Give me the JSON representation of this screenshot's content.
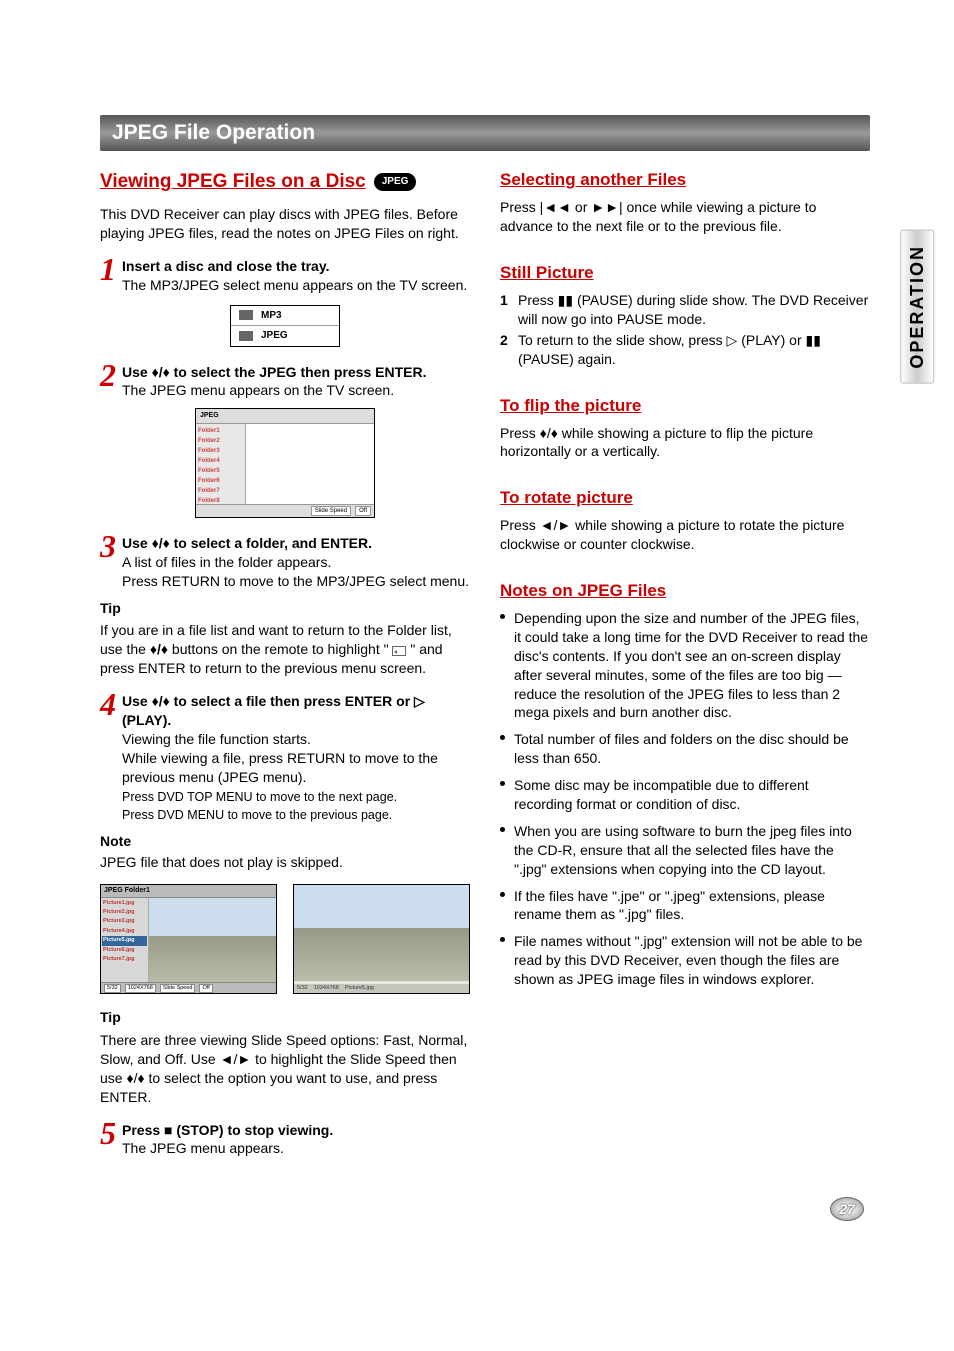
{
  "colors": {
    "accent": "#cc0000",
    "text": "#000000",
    "bar_gradient": [
      "#555555",
      "#999999",
      "#555555"
    ]
  },
  "section_title": "JPEG File Operation",
  "side_tab": "OPERATION",
  "page_number": "27",
  "left": {
    "heading": "Viewing JPEG Files on a Disc",
    "badge": "JPEG",
    "intro": "This DVD Receiver can play discs with JPEG files. Before playing JPEG files, read the notes on JPEG Files on right.",
    "step1": {
      "bold": "Insert a disc and close the tray.",
      "text": "The MP3/JPEG select menu appears on the TV screen."
    },
    "menu_box": {
      "row1": "MP3",
      "row2": "JPEG"
    },
    "step2": {
      "bold": "Use ♦/♦ to select the JPEG then press ENTER.",
      "text": "The JPEG menu appears on the TV screen."
    },
    "jpeg_screen1": {
      "title": "JPEG",
      "folders": [
        "Folder1",
        "Folder2",
        "Folder3",
        "Folder4",
        "Folder5",
        "Folder6",
        "Folder7",
        "Folder8"
      ],
      "footer_label": "Slide Speed",
      "footer_value": "Off"
    },
    "step3": {
      "bold": "Use ♦/♦ to select a folder, and ENTER.",
      "text1": "A list of files in the folder appears.",
      "text2": "Press RETURN to move to the MP3/JPEG select menu."
    },
    "tip1_label": "Tip",
    "tip1_text": "If you are in a file list and want to return to the Folder list, use the ♦/♦ buttons on the remote to highlight \" \" and press ENTER to return to the previous menu screen.",
    "step4": {
      "bold": "Use ♦/♦ to select a file then press ENTER or ▷ (PLAY).",
      "text1": "Viewing the file function starts.",
      "text2": "While viewing a file, press RETURN to move to the previous menu (JPEG menu).",
      "text3": "Press DVD TOP MENU to move to the next page.",
      "text4": "Press DVD MENU to move to the previous page."
    },
    "note_label": "Note",
    "note_text": "JPEG file that does not play is skipped.",
    "shot_left": {
      "title": "JPEG    Folder1",
      "files": [
        "Picture1.jpg",
        "Picture2.jpg",
        "Picture3.jpg",
        "Picture4.jpg",
        "Picture5.jpg",
        "Picture6.jpg",
        "Picture7.jpg"
      ],
      "selected_index": 4,
      "footer_count": "5/32",
      "footer_res": "1024X768",
      "footer_label": "Slide Speed",
      "footer_value": "Off"
    },
    "shot_right": {
      "footer_count": "5/32",
      "footer_res": "1024X768",
      "footer_file": "Picture5.jpg"
    },
    "tip2_label": "Tip",
    "tip2_text": "There are three viewing Slide Speed options: Fast, Normal, Slow, and Off. Use ◄/► to highlight the Slide Speed then use ♦/♦ to select the option you want to use, and press ENTER.",
    "step5": {
      "bold": "Press ■ (STOP) to stop viewing.",
      "text": "The JPEG menu appears."
    }
  },
  "right": {
    "sec1_h": "Selecting another Files",
    "sec1_t": "Press |◄◄ or ►►| once while viewing a picture to advance to the next file or to the previous file.",
    "sec2_h": "Still Picture",
    "sec2_items": [
      {
        "n": "1",
        "t": "Press ▮▮ (PAUSE) during slide show. The DVD Receiver will now go into PAUSE mode."
      },
      {
        "n": "2",
        "t": "To return to the slide show, press ▷ (PLAY) or ▮▮ (PAUSE) again."
      }
    ],
    "sec3_h": "To flip the picture",
    "sec3_t": "Press ♦/♦ while showing a picture to flip the picture horizontally or a vertically.",
    "sec4_h": "To rotate picture",
    "sec4_t": "Press ◄/► while showing a picture to rotate the picture clockwise or counter clockwise.",
    "sec5_h": "Notes on JPEG Files",
    "sec5_bullets": [
      "Depending upon the size and number of the JPEG files, it could take a long time for the DVD Receiver to read the disc's contents. If you don't see an on-screen display after several minutes, some of the files are too big — reduce the resolution of the JPEG files to less than 2 mega pixels and burn another disc.",
      "Total number of files and folders on the disc should be less than 650.",
      "Some disc may be incompatible due to different recording format or condition of disc.",
      "When you are using software to burn the jpeg files into the CD-R, ensure that all the selected files have the \".jpg\" extensions when copying into the CD layout.",
      "If the files have \".jpe\" or \".jpeg\" extensions, please rename them as \".jpg\" files.",
      "File names without \".jpg\" extension will not be able to be read by this DVD Receiver, even though the files are shown as JPEG image files in windows explorer."
    ]
  }
}
